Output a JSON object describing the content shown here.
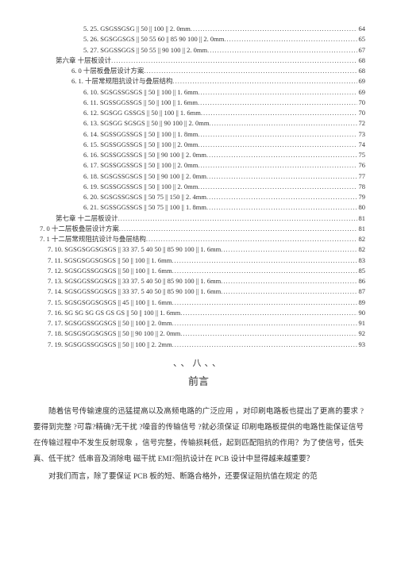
{
  "toc": [
    {
      "indent": "indent-3",
      "label": "5. 25.  GSGSSGSG || 50 || 100 || 2. 0mm",
      "page": "64"
    },
    {
      "indent": "indent-3",
      "label": "5. 26.  SGSGGSGS || 50 55 60 || 85 90 100 || 2. 0mm",
      "page": "65"
    },
    {
      "indent": "indent-3",
      "label": "5. 27.  SGGSSGGS || 50 55 || 90 100 || 2. 0mm",
      "page": "67"
    },
    {
      "indent": "indent-1",
      "label": "第六章  十层板设计",
      "page": "68"
    },
    {
      "indent": "indent-2",
      "label": "6. 0  十层板叠层设计方案",
      "page": "68"
    },
    {
      "indent": "indent-2",
      "label": "6. 1.  十层常规阻抗设计与叠层结构",
      "page": "69"
    },
    {
      "indent": "indent-3",
      "label": "6. 10.  SGSGSSGSGS || 50 || 100 || 1. 6mm",
      "page": "69"
    },
    {
      "indent": "indent-3",
      "label": "6. 11.  SGSSGGSSGS || 50 || 100 || 1. 6mm",
      "page": "70"
    },
    {
      "indent": "indent-3",
      "label": "6. 12.  SGSGG GSSGS || 50 || 100 || 1. 6mm",
      "page": "70"
    },
    {
      "indent": "indent-3",
      "label": "6. 13.  SGSGG SGSGS || 50 || 90 100 || 2. 0mm",
      "page": "72"
    },
    {
      "indent": "indent-3",
      "label": "6. 14.  SGSSGGSSGS || 50 || 100 || 1. 8mm",
      "page": "73"
    },
    {
      "indent": "indent-3",
      "label": "6. 15.  SGSSGGSSGS || 50 || 100 || 2. 0mm",
      "page": "74"
    },
    {
      "indent": "indent-3",
      "label": "6. 16.  SGSSGGSSGS || 50 || 90 100 || 2. 0mm",
      "page": "75"
    },
    {
      "indent": "indent-3",
      "label": "6. 17.  SGSSGGSSGS || 50 || 100 || 2. 0mm",
      "page": "76"
    },
    {
      "indent": "indent-3",
      "label": "6. 18.  SGSGSSGSGS || 50 || 90 100 || 2. 0mm",
      "page": "77"
    },
    {
      "indent": "indent-3",
      "label": "6. 19.  SGSSGGSSGS || 50 || 100 || 2. 0mm",
      "page": "78"
    },
    {
      "indent": "indent-3",
      "label": "6. 20.  SGSGSSGSGS || 50 75 || 150 || 2. 4mm",
      "page": "79"
    },
    {
      "indent": "indent-3",
      "label": "6. 21.  SGSSGGSSGS || 50 75 || 100 || 1. 8mm",
      "page": "80"
    },
    {
      "indent": "indent-1",
      "label": "第七章  十二层板设计",
      "page": "81"
    },
    {
      "indent": "indent-1b",
      "label": "7. 0  十二层板叠层设计方案",
      "page": "81"
    },
    {
      "indent": "indent-1b",
      "label": "7. 1  十二层常规阻抗设计与叠层结构",
      "page": "82"
    },
    {
      "indent": "indent-2b",
      "label": "7. 10.  SGSGSGGSGSGS || 33 37. 5 40 50 || 85 90 100 || 1. 6mm",
      "page": "82"
    },
    {
      "indent": "indent-2b",
      "label": "7. 11.  SGSGSGGSGSGS || 50 || 100 || 1. 6mm",
      "page": "83"
    },
    {
      "indent": "indent-2b",
      "label": "7. 12.  SGSGGSSGGSGS || 50 || 100 || 1. 6mm",
      "page": "85"
    },
    {
      "indent": "indent-2b",
      "label": "7. 13.  SGSGGSSGGSGS || 33 37. 5 40 50 || 85 90 100 || 1. 6mm",
      "page": "86"
    },
    {
      "indent": "indent-2b",
      "label": "7. 14.  SGSGGSSGGSGS || 33 37. 5 40 50 || 85 90 100 || 1. 6mm",
      "page": "87"
    },
    {
      "indent": "indent-2b",
      "label": "7. 15.  SGSGSGGSGSGS || 45 || 100 || 1. 6mm",
      "page": "89"
    },
    {
      "indent": "indent-2b",
      "label": "7. 16.  SG SG SG GS GS GS || 50 || 100 || 1. 6mm",
      "page": "90"
    },
    {
      "indent": "indent-2b",
      "label": "7. 17.  SGSGGSSGGSGS || 50 || 100 || 2. 0mm",
      "page": "91"
    },
    {
      "indent": "indent-2b",
      "label": "7. 18.  SGSGSGGSGSGS || 50 || 90 100 || 2. 0mm",
      "page": "92"
    },
    {
      "indent": "indent-2b",
      "label": "7. 19.  SGSGGSSGGSGS || 50 || 100 || 2. 2mm",
      "page": "93"
    }
  ],
  "divider": "、、八、、",
  "foreword_title": "前言",
  "paragraphs": [
    "随着信号传输速度的迅猛提高以及高频电路的广泛应用 ，对印刷电路板也提出了更高的要求 ?要得到完整 ?可靠?精确?无干扰 ?噪音的传输信号 ?就必须保证 印刷电路板提供的电路性能保证信号在传输过程中不发生反射现象 ，信号完整，传输损耗低，起到匹配阻抗的作用？为了使信号，低失真、低干扰？低串音及消除电 磁干扰 EMI?阻抗设计在 PCB 设计中显得越来越重要？",
    "对我们而言，除了要保证 PCB 板的短、断路合格外，还要保证阻抗值在规定 的范"
  ]
}
